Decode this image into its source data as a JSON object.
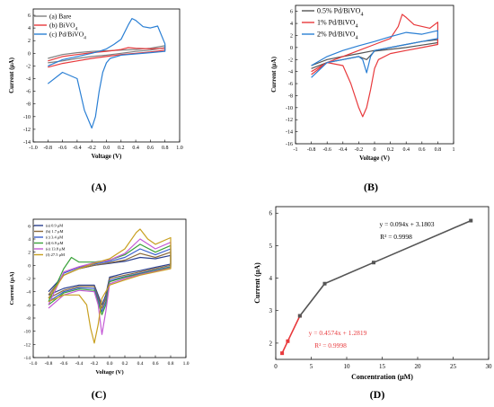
{
  "panels": [
    {
      "label": "(A)",
      "xlabel": "Voltage (V)",
      "ylabel": "Current (μA)",
      "xticks": [
        "-1.0",
        "-0.8",
        "-0.6",
        "-0.4",
        "-0.2",
        "0.0",
        "0.2",
        "0.4",
        "0.6",
        "0.8",
        "1.0"
      ],
      "yticks": [
        "6",
        "4",
        "2",
        "0",
        "-2",
        "-4",
        "-6",
        "-8",
        "-10",
        "-12",
        "-14"
      ],
      "legend": [
        "(a) Bare",
        "(b) BiVO4",
        "(c) Pd/BiVO4"
      ]
    },
    {
      "label": "(B)",
      "xlabel": "Voltage (V)",
      "ylabel": "Current (μA)",
      "xticks": [
        "-1",
        "-0.8",
        "-0.6",
        "-0.4",
        "-0.2",
        "0",
        "0.2",
        "0.4",
        "0.6",
        "0.8",
        "1"
      ],
      "yticks": [
        "6",
        "4",
        "2",
        "0",
        "-2",
        "-4",
        "-6",
        "-8",
        "-10",
        "-12",
        "-14",
        "-16"
      ],
      "legend": [
        "0.5% Pd/BiVO4",
        "1% Pd/BiVO4",
        "2% Pd/BiVO4"
      ]
    },
    {
      "label": "(C)",
      "xlabel": "Voltage (V)",
      "ylabel": "Current (μA)",
      "xticks": [
        "-1.0",
        "-0.8",
        "-0.6",
        "-0.4",
        "-0.2",
        "0.0",
        "0.2",
        "0.4",
        "0.6",
        "0.8",
        "1.0"
      ],
      "yticks": [
        "6",
        "4",
        "2",
        "0",
        "-2",
        "-4",
        "-6",
        "-8",
        "-10",
        "-12",
        "-14"
      ],
      "legend": [
        "(a) 0.9 μM",
        "(b) 1.7 μM",
        "(c) 3.4 μM",
        "(d) 6.9 μM",
        "(e) 13.8 μM",
        "(f) 27.5 μM"
      ]
    },
    {
      "label": "(D)",
      "xlabel": "Concentration (μM)",
      "ylabel": "Current (μA)",
      "xticks": [
        "0",
        "5",
        "10",
        "15",
        "20",
        "25",
        "30"
      ],
      "yticks": [
        "6",
        "5",
        "4",
        "3",
        "2"
      ],
      "fit_high": {
        "equation": "y = 0.094x + 3.1803",
        "r2": "R² = 0.9998"
      },
      "fit_low": {
        "equation": "y = 0.4574x + 1.2819",
        "r2": "R² = 0.9998"
      }
    }
  ],
  "colors": {
    "A": [
      "#7f7f7f",
      "#e8393c",
      "#2a7fd4"
    ],
    "B": [
      "#555555",
      "#e8393c",
      "#2a7fd4"
    ],
    "C": [
      "#2a3f8f",
      "#8a6a3b",
      "#3a5fcd",
      "#3aa23a",
      "#c45ad6",
      "#c8a020"
    ],
    "D_low": "#e8393c",
    "D_high": "#555555"
  },
  "chart_data": [
    {
      "type": "line",
      "panel": "A",
      "xlabel": "Voltage (V)",
      "ylabel": "Current (μA)",
      "xlim": [
        -1.0,
        1.0
      ],
      "ylim": [
        -14,
        7
      ],
      "series": [
        {
          "name": "(a) Bare",
          "x": [
            -0.8,
            -0.6,
            -0.4,
            -0.2,
            0.0,
            0.2,
            0.4,
            0.6,
            0.8,
            0.8,
            0.6,
            0.4,
            0.2,
            0.0,
            -0.2,
            -0.4,
            -0.6,
            -0.8
          ],
          "y": [
            -0.8,
            -0.2,
            0.1,
            0.3,
            0.4,
            0.5,
            0.6,
            0.8,
            1.2,
            0.9,
            0.5,
            0.3,
            0.0,
            -0.3,
            -0.5,
            -0.8,
            -1.2,
            -1.5
          ]
        },
        {
          "name": "(b) BiVO4",
          "x": [
            -0.8,
            -0.6,
            -0.4,
            -0.2,
            0.0,
            0.2,
            0.3,
            0.4,
            0.6,
            0.8,
            0.8,
            0.6,
            0.4,
            0.2,
            0.0,
            -0.2,
            -0.4,
            -0.6,
            -0.8
          ],
          "y": [
            -1.2,
            -0.5,
            -0.2,
            0.1,
            0.3,
            0.6,
            0.9,
            0.8,
            0.7,
            0.8,
            0.5,
            0.2,
            0.0,
            -0.2,
            -0.5,
            -0.8,
            -1.2,
            -1.6,
            -2.2
          ]
        },
        {
          "name": "(c) Pd/BiVO4",
          "x": [
            -0.8,
            -0.6,
            -0.4,
            -0.2,
            -0.1,
            0.0,
            0.1,
            0.2,
            0.3,
            0.35,
            0.4,
            0.5,
            0.6,
            0.7,
            0.8,
            0.8,
            0.6,
            0.4,
            0.2,
            0.05,
            0.0,
            -0.05,
            -0.1,
            -0.15,
            -0.2,
            -0.3,
            -0.4,
            -0.6,
            -0.8
          ],
          "y": [
            -2.0,
            -1.0,
            -0.5,
            0.0,
            0.3,
            0.7,
            1.4,
            2.2,
            4.5,
            5.5,
            5.2,
            4.2,
            4.0,
            4.3,
            1.5,
            0.3,
            0.1,
            -0.1,
            -0.3,
            -0.8,
            -1.5,
            -3.0,
            -6.0,
            -10.0,
            -11.8,
            -9.0,
            -4.0,
            -3.0,
            -4.8
          ]
        }
      ]
    },
    {
      "type": "line",
      "panel": "B",
      "xlabel": "Voltage (V)",
      "ylabel": "Current (μA)",
      "xlim": [
        -1.0,
        1.0
      ],
      "ylim": [
        -16,
        7
      ],
      "series": [
        {
          "name": "0.5% Pd/BiVO4",
          "x": [
            -0.8,
            -0.6,
            -0.4,
            -0.2,
            0.0,
            0.2,
            0.4,
            0.6,
            0.8,
            0.8,
            0.6,
            0.4,
            0.2,
            0.0,
            -0.1,
            -0.2,
            -0.4,
            -0.6,
            -0.8
          ],
          "y": [
            -3.0,
            -2.0,
            -1.5,
            -1.0,
            -0.5,
            0.0,
            0.5,
            1.0,
            1.3,
            0.8,
            0.4,
            0.0,
            -0.3,
            -0.6,
            -2.0,
            -1.5,
            -2.0,
            -2.5,
            -3.5
          ]
        },
        {
          "name": "1% Pd/BiVO4",
          "x": [
            -0.8,
            -0.6,
            -0.4,
            -0.2,
            0.0,
            0.2,
            0.3,
            0.35,
            0.4,
            0.5,
            0.6,
            0.7,
            0.8,
            0.8,
            0.6,
            0.4,
            0.2,
            0.05,
            0.0,
            -0.05,
            -0.1,
            -0.15,
            -0.2,
            -0.3,
            -0.4,
            -0.6,
            -0.8
          ],
          "y": [
            -4.0,
            -2.5,
            -1.5,
            -0.5,
            0.5,
            1.5,
            3.5,
            5.5,
            5.0,
            3.8,
            3.5,
            3.2,
            4.2,
            0.5,
            0.0,
            -0.5,
            -1.0,
            -2.0,
            -3.5,
            -7.0,
            -10.0,
            -11.5,
            -10.0,
            -6.0,
            -3.0,
            -2.5,
            -4.5
          ]
        },
        {
          "name": "2% Pd/BiVO4",
          "x": [
            -0.8,
            -0.6,
            -0.4,
            -0.2,
            0.0,
            0.2,
            0.4,
            0.6,
            0.8,
            0.8,
            0.6,
            0.4,
            0.2,
            0.0,
            -0.05,
            -0.1,
            -0.15,
            -0.2,
            -0.4,
            -0.6,
            -0.8
          ],
          "y": [
            -3.0,
            -1.5,
            -0.5,
            0.3,
            1.0,
            1.8,
            2.5,
            2.2,
            2.8,
            1.5,
            1.0,
            0.5,
            0.0,
            -0.5,
            -1.5,
            -4.2,
            -2.0,
            -1.5,
            -2.0,
            -2.5,
            -5.0
          ]
        }
      ]
    },
    {
      "type": "line",
      "panel": "C",
      "xlabel": "Voltage (V)",
      "ylabel": "Current (μA)",
      "xlim": [
        -1.0,
        1.0
      ],
      "ylim": [
        -14,
        7
      ],
      "series": [
        {
          "name": "(a) 0.9 μM",
          "x": [
            -0.8,
            -0.6,
            -0.4,
            -0.2,
            0.0,
            0.2,
            0.4,
            0.6,
            0.8,
            0.8,
            0.6,
            0.4,
            0.2,
            0.0,
            -0.05,
            -0.1,
            -0.2,
            -0.4,
            -0.6,
            -0.8
          ],
          "y": [
            -4.0,
            -1.5,
            -0.5,
            0.0,
            0.3,
            0.6,
            1.2,
            1.0,
            1.5,
            0.2,
            -0.3,
            -0.8,
            -1.2,
            -1.8,
            -4.5,
            -6.0,
            -3.0,
            -3.0,
            -3.5,
            -4.5
          ]
        },
        {
          "name": "(b) 1.7 μM",
          "x": [
            -0.8,
            -0.6,
            -0.4,
            -0.2,
            0.0,
            0.2,
            0.4,
            0.6,
            0.8,
            0.8,
            0.6,
            0.4,
            0.2,
            0.0,
            -0.05,
            -0.1,
            -0.2,
            -0.4,
            -0.6,
            -0.8
          ],
          "y": [
            -4.5,
            -1.5,
            -0.5,
            0.0,
            0.4,
            0.8,
            1.8,
            1.2,
            2.0,
            0.0,
            -0.5,
            -1.0,
            -1.5,
            -2.0,
            -5.0,
            -6.5,
            -3.2,
            -3.2,
            -3.8,
            -5.0
          ]
        },
        {
          "name": "(c) 3.4 μM",
          "x": [
            -0.8,
            -0.6,
            -0.4,
            -0.2,
            0.0,
            0.2,
            0.4,
            0.6,
            0.8,
            0.8,
            0.6,
            0.4,
            0.2,
            0.0,
            -0.05,
            -0.1,
            -0.2,
            -0.4,
            -0.6,
            -0.8
          ],
          "y": [
            -5.0,
            -1.2,
            -0.3,
            0.2,
            0.6,
            1.2,
            2.5,
            1.6,
            2.5,
            -0.2,
            -0.7,
            -1.2,
            -1.7,
            -2.3,
            -5.5,
            -7.0,
            -3.5,
            -3.4,
            -4.0,
            -5.5
          ]
        },
        {
          "name": "(d) 6.9 μM",
          "x": [
            -0.8,
            -0.6,
            -0.5,
            -0.4,
            -0.2,
            0.0,
            0.2,
            0.4,
            0.6,
            0.8,
            0.8,
            0.6,
            0.4,
            0.2,
            0.0,
            -0.05,
            -0.1,
            -0.2,
            -0.4,
            -0.6,
            -0.8
          ],
          "y": [
            -5.5,
            -0.5,
            1.2,
            0.5,
            0.5,
            0.8,
            1.6,
            3.2,
            2.0,
            3.0,
            -0.3,
            -0.8,
            -1.3,
            -1.8,
            -2.5,
            -6.0,
            -7.5,
            -3.8,
            -3.6,
            -4.2,
            -6.0
          ]
        },
        {
          "name": "(e) 13.8 μM",
          "x": [
            -0.8,
            -0.6,
            -0.4,
            -0.2,
            0.0,
            0.2,
            0.4,
            0.6,
            0.8,
            0.8,
            0.6,
            0.4,
            0.2,
            0.0,
            -0.05,
            -0.1,
            -0.15,
            -0.2,
            -0.4,
            -0.6,
            -0.8
          ],
          "y": [
            -6.0,
            -1.0,
            -0.2,
            0.4,
            0.8,
            1.8,
            4.0,
            2.5,
            3.5,
            -0.4,
            -0.9,
            -1.4,
            -2.0,
            -2.8,
            -7.0,
            -10.5,
            -6.0,
            -4.0,
            -3.8,
            -4.5,
            -6.5
          ]
        },
        {
          "name": "(f) 27.5 μM",
          "x": [
            -0.8,
            -0.6,
            -0.4,
            -0.2,
            0.0,
            0.2,
            0.35,
            0.4,
            0.5,
            0.6,
            0.8,
            0.8,
            0.6,
            0.4,
            0.2,
            0.0,
            -0.1,
            -0.15,
            -0.2,
            -0.25,
            -0.3,
            -0.4,
            -0.6,
            -0.8
          ],
          "y": [
            -5.0,
            -1.5,
            -0.5,
            0.3,
            1.0,
            2.5,
            5.0,
            5.5,
            4.0,
            3.2,
            4.2,
            -0.5,
            -1.0,
            -1.5,
            -2.2,
            -3.0,
            -5.0,
            -9.0,
            -11.8,
            -9.5,
            -6.0,
            -4.5,
            -4.5,
            -5.5
          ]
        }
      ]
    },
    {
      "type": "scatter",
      "panel": "D",
      "xlabel": "Concentration (μM)",
      "ylabel": "Current (μA)",
      "xlim": [
        0,
        30
      ],
      "ylim": [
        1.5,
        6.2
      ],
      "series": [
        {
          "x": [
            0.9,
            1.7,
            3.4
          ],
          "y": [
            1.69,
            2.06,
            2.84
          ]
        },
        {
          "x": [
            3.4,
            6.9,
            13.8,
            27.5
          ],
          "y": [
            2.84,
            3.83,
            4.48,
            5.77
          ]
        }
      ]
    }
  ]
}
